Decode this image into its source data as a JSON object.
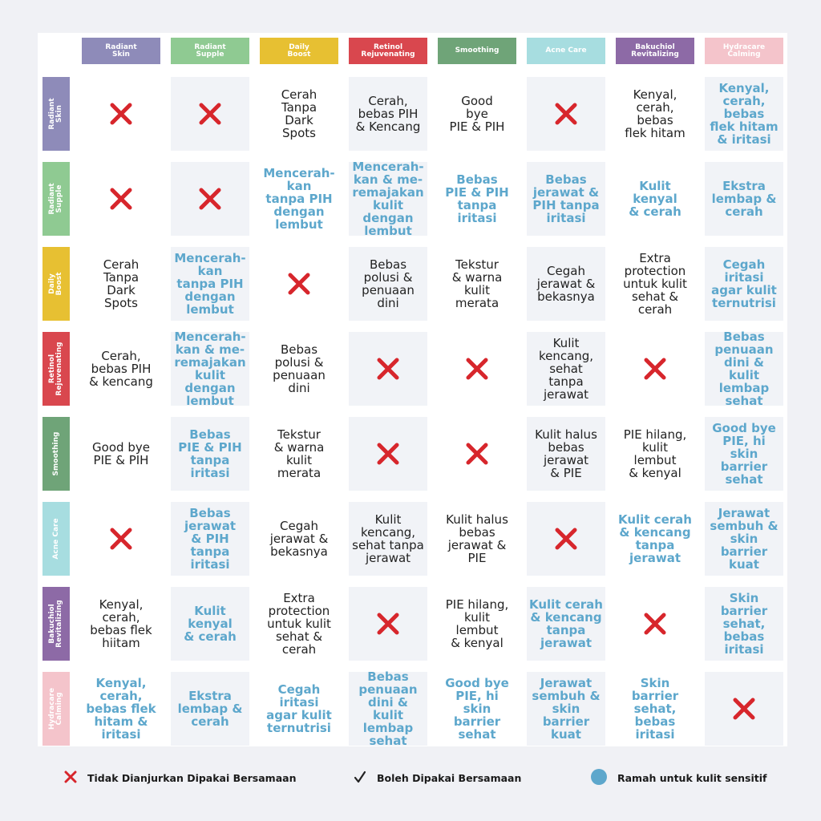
{
  "columns": [
    {
      "label": "Radiant\nSkin",
      "color": "#8e8bb9"
    },
    {
      "label": "Radiant\nSupple",
      "color": "#8fca92"
    },
    {
      "label": "Daily\nBoost",
      "color": "#e7c032"
    },
    {
      "label": "Retinol\nRejuvenating",
      "color": "#d9474e"
    },
    {
      "label": "Smoothing",
      "color": "#6fa478"
    },
    {
      "label": "Acne Care",
      "color": "#a7dde0"
    },
    {
      "label": "Bakuchiol\nRevitalizing",
      "color": "#8d6aa6"
    },
    {
      "label": "Hydracare\nCalming",
      "color": "#f4c4cb"
    }
  ],
  "rows": [
    {
      "label": "Radiant\nSkin",
      "color": "#8e8bb9"
    },
    {
      "label": "Radiant\nSupple",
      "color": "#8fca92"
    },
    {
      "label": "Daily\nBoost",
      "color": "#e7c032"
    },
    {
      "label": "Retinol\nRejuvenating",
      "color": "#d9474e"
    },
    {
      "label": "Smoothing",
      "color": "#6fa478"
    },
    {
      "label": "Acne Care",
      "color": "#a7dde0"
    },
    {
      "label": "Bakuchiol\nRevitalizing",
      "color": "#8d6aa6"
    },
    {
      "label": "Hydracare\nCalming",
      "color": "#f4c4cb"
    }
  ],
  "grid": [
    [
      {
        "kind": "x"
      },
      {
        "kind": "x"
      },
      {
        "kind": "ok",
        "text": "Cerah\nTanpa\nDark\nSpots"
      },
      {
        "kind": "ok",
        "text": "Cerah,\nbebas PIH\n& Kencang"
      },
      {
        "kind": "ok",
        "text": "Good\nbye\nPIE & PIH"
      },
      {
        "kind": "x"
      },
      {
        "kind": "ok",
        "text": "Kenyal,\ncerah,\nbebas\nflek hitam"
      },
      {
        "kind": "sensitive",
        "text": "Kenyal,\ncerah,\nbebas\nflek hitam\n& iritasi"
      }
    ],
    [
      {
        "kind": "x"
      },
      {
        "kind": "x"
      },
      {
        "kind": "sensitive",
        "text": "Mencerah-\nkan\ntanpa PIH\ndengan\nlembut"
      },
      {
        "kind": "sensitive",
        "text": "Mencerah-\nkan & me-\nremajakan\nkulit dengan\nlembut"
      },
      {
        "kind": "sensitive",
        "text": "Bebas\nPIE & PIH\ntanpa\niritasi"
      },
      {
        "kind": "sensitive",
        "text": "Bebas\njerawat &\nPIH tanpa\niritasi"
      },
      {
        "kind": "sensitive",
        "text": "Kulit\nkenyal\n& cerah"
      },
      {
        "kind": "sensitive",
        "text": "Ekstra\nlembap &\ncerah"
      }
    ],
    [
      {
        "kind": "ok",
        "text": "Cerah\nTanpa\nDark\nSpots"
      },
      {
        "kind": "sensitive",
        "text": "Mencerah-\nkan\ntanpa PIH\ndengan\nlembut"
      },
      {
        "kind": "x"
      },
      {
        "kind": "ok",
        "text": "Bebas\npolusi &\npenuaan\ndini"
      },
      {
        "kind": "ok",
        "text": "Tekstur\n& warna\nkulit\nmerata"
      },
      {
        "kind": "ok",
        "text": "Cegah\njerawat &\nbekasnya"
      },
      {
        "kind": "ok",
        "text": "Extra\nprotection\nuntuk kulit\nsehat &\ncerah"
      },
      {
        "kind": "sensitive",
        "text": "Cegah\niritasi\nagar kulit\nternutrisi"
      }
    ],
    [
      {
        "kind": "ok",
        "text": "Cerah,\nbebas PIH\n& kencang"
      },
      {
        "kind": "sensitive",
        "text": "Mencerah-\nkan & me-\nremajakan\nkulit dengan\nlembut"
      },
      {
        "kind": "ok",
        "text": "Bebas\npolusi &\npenuaan\ndini"
      },
      {
        "kind": "x"
      },
      {
        "kind": "x"
      },
      {
        "kind": "ok",
        "text": "Kulit\nkencang,\nsehat\ntanpa\njerawat"
      },
      {
        "kind": "x"
      },
      {
        "kind": "sensitive",
        "text": "Bebas\npenuaan\ndini &\nkulit lembap\nsehat"
      }
    ],
    [
      {
        "kind": "ok",
        "text": "Good bye\nPIE & PIH"
      },
      {
        "kind": "sensitive",
        "text": "Bebas\nPIE & PIH\ntanpa\niritasi"
      },
      {
        "kind": "ok",
        "text": "Tekstur\n& warna\nkulit\nmerata"
      },
      {
        "kind": "x"
      },
      {
        "kind": "x"
      },
      {
        "kind": "ok",
        "text": "Kulit halus\nbebas\njerawat\n& PIE"
      },
      {
        "kind": "ok",
        "text": "PIE hilang,\nkulit\nlembut\n& kenyal"
      },
      {
        "kind": "sensitive",
        "text": "Good bye\nPIE, hi\nskin\nbarrier\nsehat"
      }
    ],
    [
      {
        "kind": "x"
      },
      {
        "kind": "sensitive",
        "text": "Bebas\njerawat\n& PIH\ntanpa\niritasi"
      },
      {
        "kind": "ok",
        "text": "Cegah\njerawat &\nbekasnya"
      },
      {
        "kind": "ok",
        "text": "Kulit\nkencang,\nsehat tanpa\njerawat"
      },
      {
        "kind": "ok",
        "text": "Kulit halus\nbebas\njerawat &\nPIE"
      },
      {
        "kind": "x"
      },
      {
        "kind": "sensitive",
        "text": "Kulit cerah\n& kencang\ntanpa\njerawat"
      },
      {
        "kind": "sensitive",
        "text": "Jerawat\nsembuh &\nskin barrier\nkuat"
      }
    ],
    [
      {
        "kind": "ok",
        "text": "Kenyal,\ncerah,\nbebas flek\nhiitam"
      },
      {
        "kind": "sensitive",
        "text": "Kulit\nkenyal\n& cerah"
      },
      {
        "kind": "ok",
        "text": "Extra\nprotection\nuntuk kulit\nsehat &\ncerah"
      },
      {
        "kind": "x"
      },
      {
        "kind": "ok",
        "text": "PIE hilang,\nkulit\nlembut\n& kenyal"
      },
      {
        "kind": "sensitive",
        "text": "Kulit cerah\n& kencang\ntanpa\njerawat"
      },
      {
        "kind": "x"
      },
      {
        "kind": "sensitive",
        "text": "Skin\nbarrier\nsehat,\nbebas\niritasi"
      }
    ],
    [
      {
        "kind": "sensitive",
        "text": "Kenyal, cerah,\nbebas flek\nhitam &\niritasi"
      },
      {
        "kind": "sensitive",
        "text": "Ekstra\nlembap &\ncerah"
      },
      {
        "kind": "sensitive",
        "text": "Cegah\niritasi\nagar kulit\nternutrisi"
      },
      {
        "kind": "sensitive",
        "text": "Bebas\npenuaan\ndini &\nkulit lembap\nsehat"
      },
      {
        "kind": "sensitive",
        "text": "Good bye\nPIE, hi\nskin barrier\nsehat"
      },
      {
        "kind": "sensitive",
        "text": "Jerawat\nsembuh &\nskin barrier\nkuat"
      },
      {
        "kind": "sensitive",
        "text": "Skin barrier\nsehat,\nbebas\niritasi"
      },
      {
        "kind": "x"
      }
    ]
  ],
  "legend": {
    "not_recommended": "Tidak Dianjurkan Dipakai Bersamaan",
    "ok": "Boleh Dipakai Bersamaan",
    "sensitive": "Ramah untuk kulit sensitif"
  },
  "colors": {
    "x_mark": "#d7262c",
    "sensitive_text": "#5da7cc",
    "plain_text": "#222222",
    "legend_dot": "#5da7cc",
    "checkmark": "#222222"
  },
  "icons": {
    "x": "x-mark-icon",
    "check": "checkmark-icon",
    "dot": "blue-dot-icon"
  }
}
